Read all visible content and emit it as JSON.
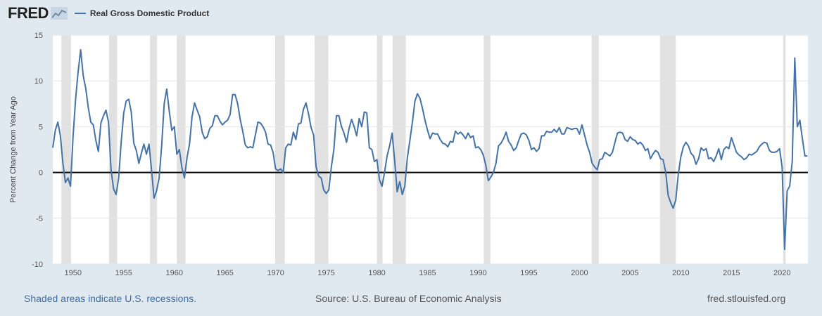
{
  "header": {
    "logo_text": "FRED",
    "logo_icon": "chart-line-icon",
    "legend_label": "Real Gross Domestic Product",
    "legend_color": "#4572a7"
  },
  "footer": {
    "recessions_note": "Shaded areas indicate U.S. recessions.",
    "source": "Source: U.S. Bureau of Economic Analysis",
    "site": "fred.stlouisfed.org"
  },
  "colors": {
    "background": "#e1e9f0",
    "plot_background": "#ffffff",
    "recession_shade": "#e1e1e1",
    "line": "#4572a7",
    "zero_line": "#000000"
  },
  "chart_data": {
    "type": "line",
    "title": "",
    "xlabel": "",
    "ylabel": "Percent Change from Year Ago",
    "xlim": [
      1948.0,
      2022.55
    ],
    "ylim": [
      -10,
      15
    ],
    "yticks": [
      -10,
      -5,
      0,
      5,
      10,
      15
    ],
    "xticks": [
      1950,
      1955,
      1960,
      1965,
      1970,
      1975,
      1980,
      1985,
      1990,
      1995,
      2000,
      2005,
      2010,
      2015,
      2020
    ],
    "grid": true,
    "legend": "top-left",
    "zero_line": true,
    "recessions": [
      [
        1948.85,
        1949.8
      ],
      [
        1953.55,
        1954.35
      ],
      [
        1957.6,
        1958.3
      ],
      [
        1960.25,
        1961.1
      ],
      [
        1969.95,
        1970.9
      ],
      [
        1973.85,
        1975.2
      ],
      [
        1980.0,
        1980.55
      ],
      [
        1981.55,
        1982.85
      ],
      [
        1990.55,
        1991.2
      ],
      [
        2001.2,
        2001.9
      ],
      [
        2007.95,
        2009.5
      ],
      [
        2020.1,
        2020.35
      ]
    ],
    "series": [
      {
        "name": "Real Gross Domestic Product",
        "x": [
          1948.0,
          1948.25,
          1948.5,
          1948.75,
          1949.0,
          1949.25,
          1949.5,
          1949.75,
          1950.0,
          1950.25,
          1950.5,
          1950.75,
          1951.0,
          1951.25,
          1951.5,
          1951.75,
          1952.0,
          1952.25,
          1952.5,
          1952.75,
          1953.0,
          1953.25,
          1953.5,
          1953.75,
          1954.0,
          1954.25,
          1954.5,
          1954.75,
          1955.0,
          1955.25,
          1955.5,
          1955.75,
          1956.0,
          1956.25,
          1956.5,
          1956.75,
          1957.0,
          1957.25,
          1957.5,
          1957.75,
          1958.0,
          1958.25,
          1958.5,
          1958.75,
          1959.0,
          1959.25,
          1959.5,
          1959.75,
          1960.0,
          1960.25,
          1960.5,
          1960.75,
          1961.0,
          1961.25,
          1961.5,
          1961.75,
          1962.0,
          1962.25,
          1962.5,
          1962.75,
          1963.0,
          1963.25,
          1963.5,
          1963.75,
          1964.0,
          1964.25,
          1964.5,
          1964.75,
          1965.0,
          1965.25,
          1965.5,
          1965.75,
          1966.0,
          1966.25,
          1966.5,
          1966.75,
          1967.0,
          1967.25,
          1967.5,
          1967.75,
          1968.0,
          1968.25,
          1968.5,
          1968.75,
          1969.0,
          1969.25,
          1969.5,
          1969.75,
          1970.0,
          1970.25,
          1970.5,
          1970.75,
          1971.0,
          1971.25,
          1971.5,
          1971.75,
          1972.0,
          1972.25,
          1972.5,
          1972.75,
          1973.0,
          1973.25,
          1973.5,
          1973.75,
          1974.0,
          1974.25,
          1974.5,
          1974.75,
          1975.0,
          1975.25,
          1975.5,
          1975.75,
          1976.0,
          1976.25,
          1976.5,
          1976.75,
          1977.0,
          1977.25,
          1977.5,
          1977.75,
          1978.0,
          1978.25,
          1978.5,
          1978.75,
          1979.0,
          1979.25,
          1979.5,
          1979.75,
          1980.0,
          1980.25,
          1980.5,
          1980.75,
          1981.0,
          1981.25,
          1981.5,
          1981.75,
          1982.0,
          1982.25,
          1982.5,
          1982.75,
          1983.0,
          1983.25,
          1983.5,
          1983.75,
          1984.0,
          1984.25,
          1984.5,
          1984.75,
          1985.0,
          1985.25,
          1985.5,
          1985.75,
          1986.0,
          1986.25,
          1986.5,
          1986.75,
          1987.0,
          1987.25,
          1987.5,
          1987.75,
          1988.0,
          1988.25,
          1988.5,
          1988.75,
          1989.0,
          1989.25,
          1989.5,
          1989.75,
          1990.0,
          1990.25,
          1990.5,
          1990.75,
          1991.0,
          1991.25,
          1991.5,
          1991.75,
          1992.0,
          1992.25,
          1992.5,
          1992.75,
          1993.0,
          1993.25,
          1993.5,
          1993.75,
          1994.0,
          1994.25,
          1994.5,
          1994.75,
          1995.0,
          1995.25,
          1995.5,
          1995.75,
          1996.0,
          1996.25,
          1996.5,
          1996.75,
          1997.0,
          1997.25,
          1997.5,
          1997.75,
          1998.0,
          1998.25,
          1998.5,
          1998.75,
          1999.0,
          1999.25,
          1999.5,
          1999.75,
          2000.0,
          2000.25,
          2000.5,
          2000.75,
          2001.0,
          2001.25,
          2001.5,
          2001.75,
          2002.0,
          2002.25,
          2002.5,
          2002.75,
          2003.0,
          2003.25,
          2003.5,
          2003.75,
          2004.0,
          2004.25,
          2004.5,
          2004.75,
          2005.0,
          2005.25,
          2005.5,
          2005.75,
          2006.0,
          2006.25,
          2006.5,
          2006.75,
          2007.0,
          2007.25,
          2007.5,
          2007.75,
          2008.0,
          2008.25,
          2008.5,
          2008.75,
          2009.0,
          2009.25,
          2009.5,
          2009.75,
          2010.0,
          2010.25,
          2010.5,
          2010.75,
          2011.0,
          2011.25,
          2011.5,
          2011.75,
          2012.0,
          2012.25,
          2012.5,
          2012.75,
          2013.0,
          2013.25,
          2013.5,
          2013.75,
          2014.0,
          2014.25,
          2014.5,
          2014.75,
          2015.0,
          2015.25,
          2015.5,
          2015.75,
          2016.0,
          2016.25,
          2016.5,
          2016.75,
          2017.0,
          2017.25,
          2017.5,
          2017.75,
          2018.0,
          2018.25,
          2018.5,
          2018.75,
          2019.0,
          2019.25,
          2019.5,
          2019.75,
          2020.0,
          2020.25,
          2020.5,
          2020.75,
          2021.0,
          2021.25,
          2021.5,
          2021.75,
          2022.0,
          2022.25,
          2022.5
        ],
        "y": [
          2.7,
          4.6,
          5.5,
          4.0,
          1.0,
          -1.1,
          -0.6,
          -1.5,
          3.9,
          8.0,
          11.0,
          13.4,
          10.6,
          9.2,
          7.1,
          5.5,
          5.2,
          3.5,
          2.3,
          5.4,
          6.2,
          6.8,
          5.5,
          0.3,
          -1.8,
          -2.4,
          -0.6,
          3.3,
          6.5,
          7.8,
          8.0,
          6.6,
          3.2,
          2.4,
          1.0,
          2.1,
          3.1,
          2.0,
          3.1,
          0.3,
          -2.8,
          -2.0,
          -0.6,
          2.9,
          7.5,
          9.1,
          6.7,
          4.6,
          5.0,
          2.0,
          2.5,
          0.5,
          -0.6,
          1.6,
          3.1,
          6.1,
          7.6,
          6.8,
          6.1,
          4.4,
          3.7,
          3.9,
          4.8,
          5.1,
          6.2,
          6.2,
          5.6,
          5.2,
          5.5,
          5.7,
          6.3,
          8.5,
          8.5,
          7.5,
          5.8,
          4.5,
          3.0,
          2.7,
          2.8,
          2.7,
          4.1,
          5.5,
          5.4,
          5.0,
          4.4,
          3.1,
          3.0,
          2.2,
          0.4,
          0.2,
          0.4,
          0.0,
          2.7,
          3.1,
          3.0,
          4.4,
          3.6,
          5.3,
          5.4,
          6.9,
          7.6,
          6.4,
          4.9,
          4.1,
          0.6,
          -0.4,
          -0.6,
          -1.9,
          -2.3,
          -1.9,
          0.6,
          2.5,
          6.2,
          6.2,
          5.0,
          4.3,
          3.3,
          4.8,
          5.8,
          5.0,
          4.0,
          5.9,
          5.0,
          6.6,
          6.5,
          2.7,
          2.5,
          1.2,
          1.4,
          -0.8,
          -1.5,
          0.0,
          1.8,
          2.9,
          4.3,
          1.3,
          -2.1,
          -1.0,
          -2.4,
          -1.5,
          1.6,
          3.5,
          5.5,
          7.8,
          8.6,
          8.1,
          7.0,
          5.7,
          4.6,
          3.7,
          4.3,
          4.2,
          4.2,
          3.6,
          3.2,
          3.1,
          2.8,
          3.4,
          3.3,
          4.5,
          4.2,
          4.4,
          4.1,
          3.7,
          4.3,
          3.8,
          4.0,
          2.7,
          2.8,
          2.5,
          1.9,
          0.8,
          -0.9,
          -0.5,
          0.0,
          1.0,
          2.9,
          3.2,
          3.7,
          4.4,
          3.4,
          3.0,
          2.4,
          2.7,
          3.5,
          4.2,
          4.3,
          4.1,
          3.5,
          2.5,
          2.7,
          2.3,
          2.6,
          4.0,
          4.0,
          4.5,
          4.4,
          4.4,
          4.7,
          4.4,
          4.9,
          4.2,
          4.2,
          4.9,
          4.8,
          4.7,
          4.8,
          4.8,
          4.2,
          5.2,
          4.1,
          3.0,
          2.2,
          1.0,
          0.6,
          0.3,
          1.4,
          1.5,
          2.2,
          2.0,
          1.8,
          2.2,
          3.3,
          4.3,
          4.4,
          4.3,
          3.6,
          3.4,
          3.9,
          3.6,
          3.5,
          3.1,
          3.3,
          3.0,
          2.4,
          2.6,
          1.5,
          2.0,
          2.4,
          2.2,
          1.5,
          1.4,
          0.1,
          -2.5,
          -3.3,
          -3.9,
          -3.0,
          -0.2,
          1.7,
          2.8,
          3.3,
          2.9,
          2.1,
          1.8,
          0.9,
          1.5,
          2.7,
          2.4,
          2.6,
          1.5,
          1.6,
          1.2,
          1.8,
          2.6,
          1.4,
          2.5,
          2.8,
          2.6,
          3.8,
          3.0,
          2.2,
          1.9,
          1.7,
          1.4,
          1.6,
          2.0,
          1.9,
          2.1,
          2.3,
          2.8,
          3.1,
          3.3,
          3.2,
          2.4,
          2.2,
          2.2,
          2.3,
          2.6,
          0.6,
          -8.4,
          -2.0,
          -1.5,
          1.2,
          12.5,
          5.0,
          5.7,
          3.7,
          1.8,
          1.8
        ]
      }
    ]
  }
}
